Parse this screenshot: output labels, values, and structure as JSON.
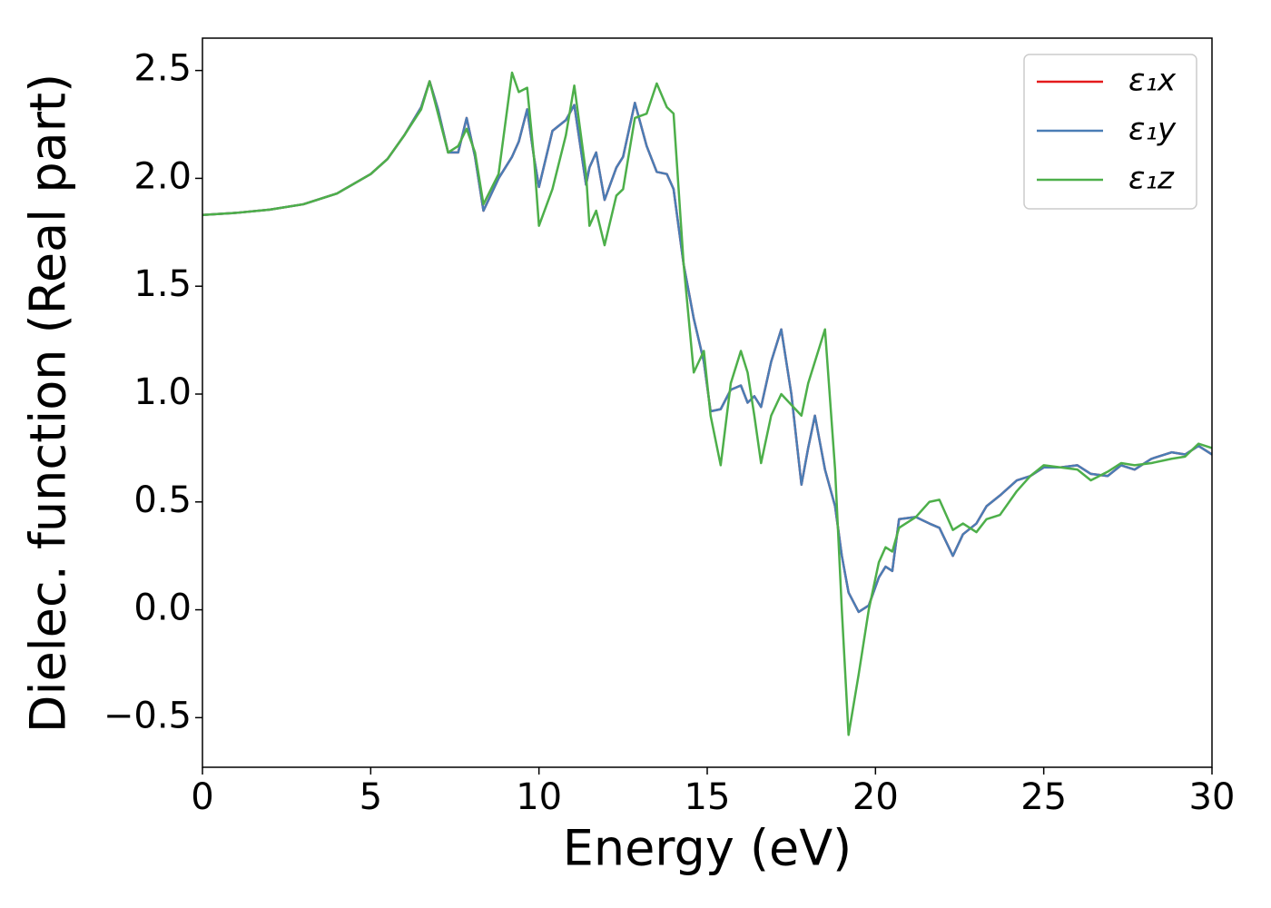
{
  "chart_data": {
    "type": "line",
    "xlabel": "Energy (eV)",
    "ylabel": "Dielec. function (Real part)",
    "xlim": [
      0,
      30
    ],
    "ylim": [
      -0.73,
      2.65
    ],
    "xticks": [
      0,
      5,
      10,
      15,
      20,
      25,
      30
    ],
    "yticks": [
      {
        "value": -0.5,
        "label": "−0.5"
      },
      {
        "value": 0,
        "label": "0.0"
      },
      0.5,
      {
        "value": 1,
        "label": "1.0"
      },
      1.5,
      {
        "value": 2,
        "label": "2.0"
      },
      2.5
    ],
    "legend": "upper right",
    "grid": false,
    "x": [
      0,
      1,
      2,
      3,
      4,
      5,
      5.5,
      6,
      6.5,
      6.75,
      7.0,
      7.3,
      7.6,
      7.85,
      8.1,
      8.35,
      8.8,
      9.2,
      9.4,
      9.65,
      9.85,
      10.0,
      10.4,
      10.8,
      11.05,
      11.4,
      11.5,
      11.7,
      11.95,
      12.3,
      12.5,
      12.85,
      13.2,
      13.5,
      13.8,
      14.0,
      14.3,
      14.6,
      14.9,
      15.1,
      15.4,
      15.7,
      16.0,
      16.2,
      16.4,
      16.6,
      16.9,
      17.2,
      17.5,
      17.8,
      18.0,
      18.2,
      18.5,
      18.8,
      19.0,
      19.2,
      19.5,
      19.8,
      20.1,
      20.3,
      20.5,
      20.7,
      21.2,
      21.6,
      21.9,
      22.3,
      22.6,
      23.0,
      23.3,
      23.7,
      24.2,
      24.6,
      25.0,
      25.5,
      26.0,
      26.4,
      26.9,
      27.3,
      27.7,
      28.2,
      28.8,
      29.2,
      29.6,
      30
    ],
    "series": [
      {
        "name": "ε₁x",
        "color": "#e41a1c",
        "values": [
          1.83,
          1.84,
          1.855,
          1.88,
          1.93,
          2.02,
          2.09,
          2.2,
          2.33,
          2.45,
          2.32,
          2.12,
          2.12,
          2.28,
          2.1,
          1.85,
          2.0,
          2.1,
          2.17,
          2.32,
          2.1,
          1.96,
          2.22,
          2.27,
          2.34,
          1.97,
          2.05,
          2.12,
          1.9,
          2.05,
          2.1,
          2.35,
          2.15,
          2.03,
          2.02,
          1.95,
          1.6,
          1.35,
          1.15,
          0.92,
          0.93,
          1.02,
          1.04,
          0.96,
          0.99,
          0.94,
          1.15,
          1.3,
          1.0,
          0.58,
          0.75,
          0.9,
          0.65,
          0.48,
          0.25,
          0.08,
          -0.01,
          0.02,
          0.15,
          0.2,
          0.18,
          0.42,
          0.43,
          0.4,
          0.38,
          0.25,
          0.35,
          0.4,
          0.48,
          0.53,
          0.6,
          0.62,
          0.66,
          0.66,
          0.67,
          0.63,
          0.62,
          0.67,
          0.65,
          0.7,
          0.73,
          0.72,
          0.76,
          0.72
        ]
      },
      {
        "name": "ε₁y",
        "color": "#4a7db5",
        "values": [
          1.83,
          1.84,
          1.855,
          1.88,
          1.93,
          2.02,
          2.09,
          2.2,
          2.33,
          2.45,
          2.32,
          2.12,
          2.12,
          2.28,
          2.1,
          1.85,
          2.0,
          2.1,
          2.17,
          2.32,
          2.1,
          1.96,
          2.22,
          2.27,
          2.34,
          1.97,
          2.05,
          2.12,
          1.9,
          2.05,
          2.1,
          2.35,
          2.15,
          2.03,
          2.02,
          1.95,
          1.6,
          1.35,
          1.15,
          0.92,
          0.93,
          1.02,
          1.04,
          0.96,
          0.99,
          0.94,
          1.15,
          1.3,
          1.0,
          0.58,
          0.75,
          0.9,
          0.65,
          0.48,
          0.25,
          0.08,
          -0.01,
          0.02,
          0.15,
          0.2,
          0.18,
          0.42,
          0.43,
          0.4,
          0.38,
          0.25,
          0.35,
          0.4,
          0.48,
          0.53,
          0.6,
          0.62,
          0.66,
          0.66,
          0.67,
          0.63,
          0.62,
          0.67,
          0.65,
          0.7,
          0.73,
          0.72,
          0.76,
          0.72
        ]
      },
      {
        "name": "ε₁z",
        "color": "#4daf4a",
        "values": [
          1.83,
          1.84,
          1.855,
          1.88,
          1.93,
          2.02,
          2.09,
          2.2,
          2.32,
          2.45,
          2.3,
          2.12,
          2.15,
          2.23,
          2.12,
          1.88,
          2.02,
          2.49,
          2.4,
          2.42,
          2.1,
          1.78,
          1.95,
          2.2,
          2.43,
          2.02,
          1.78,
          1.85,
          1.69,
          1.92,
          1.95,
          2.28,
          2.3,
          2.44,
          2.33,
          2.3,
          1.6,
          1.1,
          1.2,
          0.9,
          0.67,
          1.05,
          1.2,
          1.1,
          0.9,
          0.68,
          0.9,
          1.0,
          0.95,
          0.9,
          1.05,
          1.15,
          1.3,
          0.65,
          0.0,
          -0.58,
          -0.3,
          0.0,
          0.22,
          0.29,
          0.27,
          0.38,
          0.43,
          0.5,
          0.51,
          0.37,
          0.4,
          0.36,
          0.42,
          0.44,
          0.55,
          0.62,
          0.67,
          0.66,
          0.65,
          0.6,
          0.64,
          0.68,
          0.67,
          0.68,
          0.7,
          0.71,
          0.77,
          0.75
        ]
      }
    ]
  }
}
